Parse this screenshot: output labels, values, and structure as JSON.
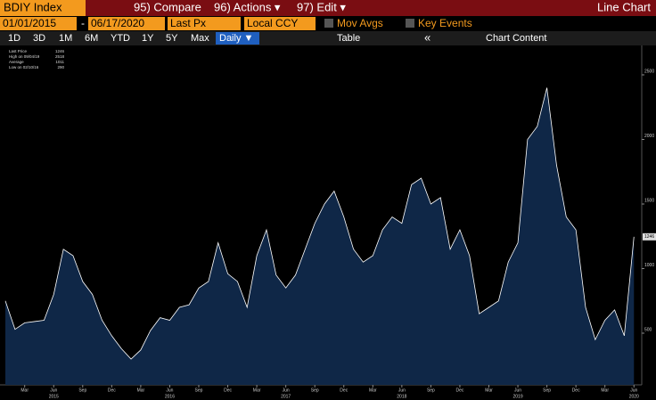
{
  "toolbar": {
    "ticker": "BDIY Index",
    "menu": [
      "95) Compare",
      "96) Actions ▾",
      "97) Edit ▾"
    ],
    "view": "Line Chart"
  },
  "controls": {
    "start": "01/01/2015",
    "dash": "-",
    "end": "06/17/2020",
    "field": "Last Px",
    "currency": "Local CCY",
    "options": [
      "Mov Avgs",
      "Key Events"
    ]
  },
  "periods": {
    "buttons": [
      "1D",
      "3D",
      "1M",
      "6M",
      "YTD",
      "1Y",
      "5Y",
      "Max"
    ],
    "frequency": "Daily ▼",
    "table": "Table",
    "collapse": "«",
    "content": "Chart Content"
  },
  "chart_data": {
    "type": "area",
    "color": "#ffffff",
    "fill": "#0f2747",
    "legend": [
      [
        "Last Price",
        "1246"
      ],
      [
        "High on 09/04/19",
        "2518"
      ],
      [
        "Average",
        "1011"
      ],
      [
        "Low on 02/10/16",
        "290"
      ]
    ],
    "last_label": {
      "value": 1246,
      "label": "1246"
    },
    "categories": [
      null,
      null,
      "Mar",
      null,
      null,
      "Jun",
      null,
      null,
      "Sep",
      null,
      null,
      "Dec",
      null,
      null,
      "Mar",
      null,
      null,
      "Jun",
      null,
      null,
      "Sep",
      null,
      null,
      "Dec",
      null,
      null,
      "Mar",
      null,
      null,
      "Jun",
      null,
      null,
      "Sep",
      null,
      null,
      "Dec",
      null,
      null,
      "Mar",
      null,
      null,
      "Jun",
      null,
      null,
      "Sep",
      null,
      null,
      "Dec",
      null,
      null,
      "Mar",
      null,
      null,
      "Jun",
      null,
      null,
      "Sep",
      null,
      null,
      "Dec",
      null,
      null,
      "Mar",
      null,
      null,
      "Jun"
    ],
    "years": [
      "2015",
      "2016",
      "2017",
      "2018",
      "2019",
      "2020"
    ],
    "series": [
      {
        "name": "BDIY Index",
        "values": [
          750,
          530,
          580,
          590,
          600,
          800,
          1150,
          1100,
          900,
          800,
          600,
          480,
          380,
          300,
          370,
          520,
          620,
          600,
          700,
          720,
          850,
          900,
          1200,
          960,
          900,
          700,
          1100,
          1300,
          950,
          850,
          950,
          1150,
          1350,
          1500,
          1600,
          1400,
          1150,
          1050,
          1100,
          1300,
          1400,
          1350,
          1650,
          1700,
          1500,
          1550,
          1150,
          1300,
          1100,
          650,
          700,
          750,
          1050,
          1200,
          2000,
          2100,
          2400,
          1800,
          1400,
          1300,
          700,
          450,
          600,
          680,
          480,
          1246
        ]
      }
    ],
    "ylim": [
      100,
      2700
    ],
    "yticks": [
      500,
      1000,
      1500,
      2000,
      2500
    ]
  }
}
